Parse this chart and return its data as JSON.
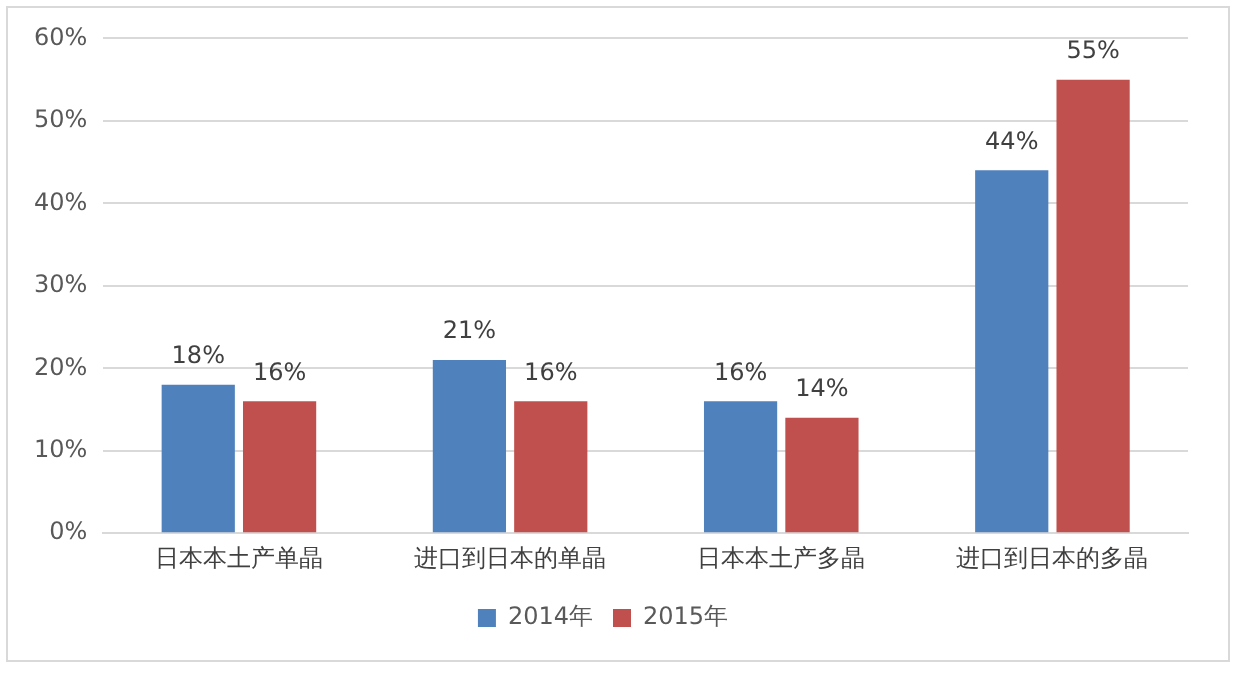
{
  "chart_data": {
    "type": "bar",
    "categories": [
      "日本本土产单晶",
      "进口到日本的单晶",
      "日本本土产多晶",
      "进口到日本的多晶"
    ],
    "series": [
      {
        "name": "2014年",
        "color": "#4f81bd",
        "values": [
          18,
          21,
          16,
          44
        ],
        "value_labels": [
          "18%",
          "21%",
          "16%",
          "44%"
        ]
      },
      {
        "name": "2015年",
        "color": "#c0504d",
        "values": [
          16,
          16,
          14,
          55
        ],
        "value_labels": [
          "16%",
          "16%",
          "14%",
          "55%"
        ]
      }
    ],
    "ylim": [
      0,
      60
    ],
    "yticks": [
      {
        "value": 0,
        "label": "0%"
      },
      {
        "value": 10,
        "label": "10%"
      },
      {
        "value": 20,
        "label": "20%"
      },
      {
        "value": 30,
        "label": "30%"
      },
      {
        "value": 40,
        "label": "40%"
      },
      {
        "value": 50,
        "label": "50%"
      },
      {
        "value": 60,
        "label": "60%"
      }
    ],
    "grid": "y",
    "legend": "bottom"
  }
}
